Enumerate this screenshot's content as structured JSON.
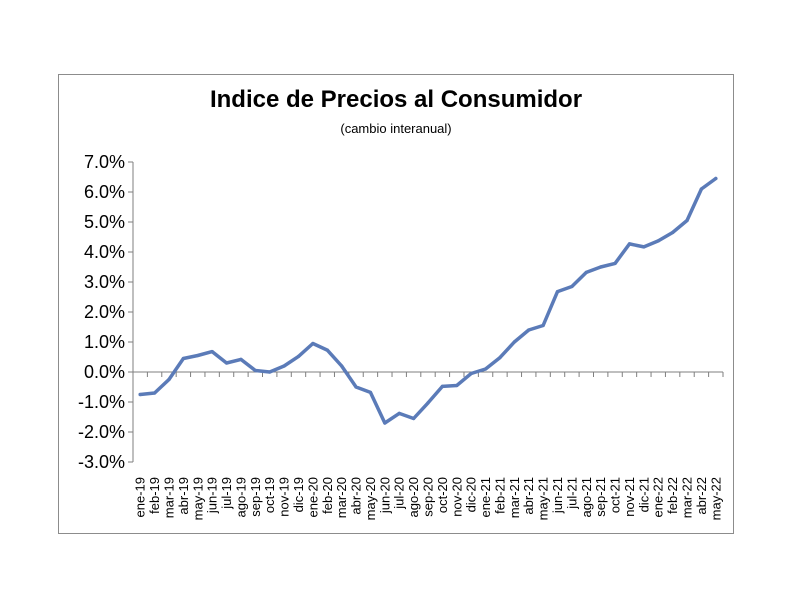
{
  "chart_data": {
    "type": "line",
    "title": "Indice de Precios al Consumidor",
    "subtitle": "(cambio interanual)",
    "xlabel": "",
    "ylabel": "",
    "ylim": [
      -3.0,
      7.0
    ],
    "ytick_step": 1.0,
    "y_format": "percent_1dp",
    "grid": false,
    "legend": "none",
    "line_color": "#5b7bb8",
    "categories": [
      "ene-19",
      "feb-19",
      "mar-19",
      "abr-19",
      "may-19",
      "jun-19",
      "jul-19",
      "ago-19",
      "sep-19",
      "oct-19",
      "nov-19",
      "dic-19",
      "ene-20",
      "feb-20",
      "mar-20",
      "abr-20",
      "may-20",
      "jun-20",
      "jul-20",
      "ago-20",
      "sep-20",
      "oct-20",
      "nov-20",
      "dic-20",
      "ene-21",
      "feb-21",
      "mar-21",
      "abr-21",
      "may-21",
      "jun-21",
      "jul-21",
      "ago-21",
      "sep-21",
      "oct-21",
      "nov-21",
      "dic-21",
      "ene-22",
      "feb-22",
      "mar-22",
      "abr-22",
      "may-22"
    ],
    "series": [
      {
        "values": [
          -0.75,
          -0.7,
          -0.25,
          0.45,
          0.55,
          0.68,
          0.3,
          0.42,
          0.05,
          0.0,
          0.2,
          0.52,
          0.95,
          0.73,
          0.2,
          -0.5,
          -0.68,
          -1.7,
          -1.38,
          -1.55,
          -1.03,
          -0.48,
          -0.45,
          -0.05,
          0.1,
          0.48,
          1.0,
          1.4,
          1.55,
          2.68,
          2.85,
          3.32,
          3.5,
          3.62,
          4.27,
          4.17,
          4.37,
          4.65,
          5.05,
          6.1,
          6.45
        ]
      }
    ]
  }
}
